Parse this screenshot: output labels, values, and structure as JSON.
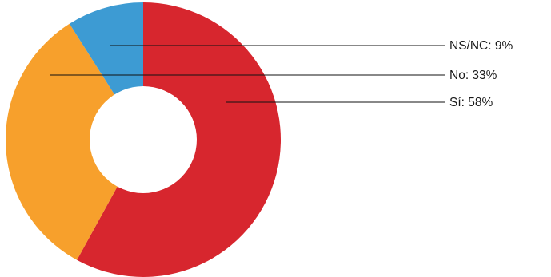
{
  "chart_data": {
    "type": "pie",
    "variant": "donut",
    "slices": [
      {
        "label": "Sí: 58%",
        "name": "Sí",
        "value": 58,
        "color": "#d7262e"
      },
      {
        "label": "No: 33%",
        "name": "No",
        "value": 33,
        "color": "#f7a02c"
      },
      {
        "label": "NS/NC: 9%",
        "name": "NS/NC",
        "value": 9,
        "color": "#3d9bd3"
      }
    ],
    "legend": "none",
    "labels_placement": "right with leader lines"
  }
}
